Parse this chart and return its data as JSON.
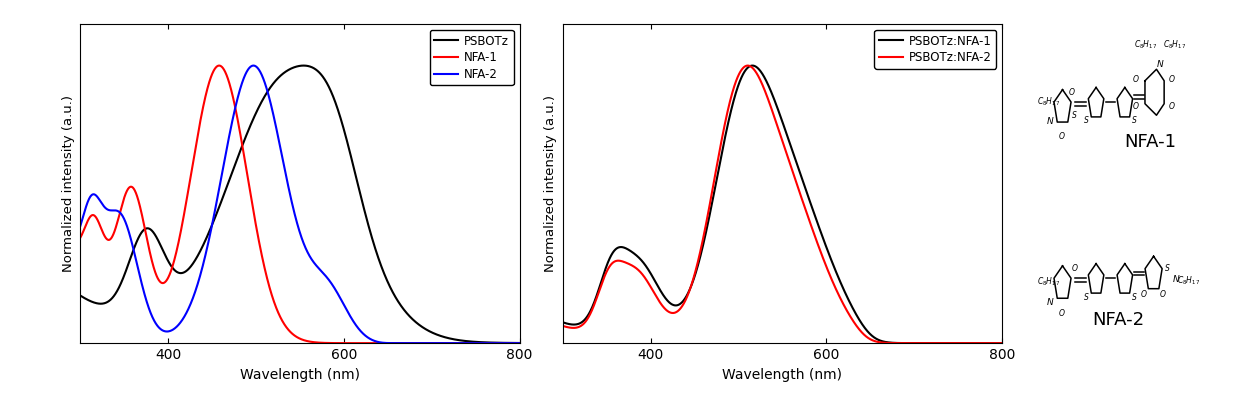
{
  "xlabel": "Wavelength (nm)",
  "ylabel": "Normalized intensity (a.u.)",
  "xlim": [
    300,
    800
  ],
  "ylim": [
    0,
    1.15
  ],
  "plot1_legend": [
    "PSBOTz",
    "NFA-1",
    "NFA-2"
  ],
  "plot1_colors": [
    "black",
    "red",
    "blue"
  ],
  "plot2_legend": [
    "PSBOTz:NFA-1",
    "PSBOTz:NFA-2"
  ],
  "plot2_colors": [
    "black",
    "red"
  ],
  "xticks": [
    400,
    600,
    800
  ],
  "nfa1_label": "NFA-1",
  "nfa2_label": "NFA-2",
  "legend1_pos": "upper right",
  "legend2_pos": "upper right"
}
